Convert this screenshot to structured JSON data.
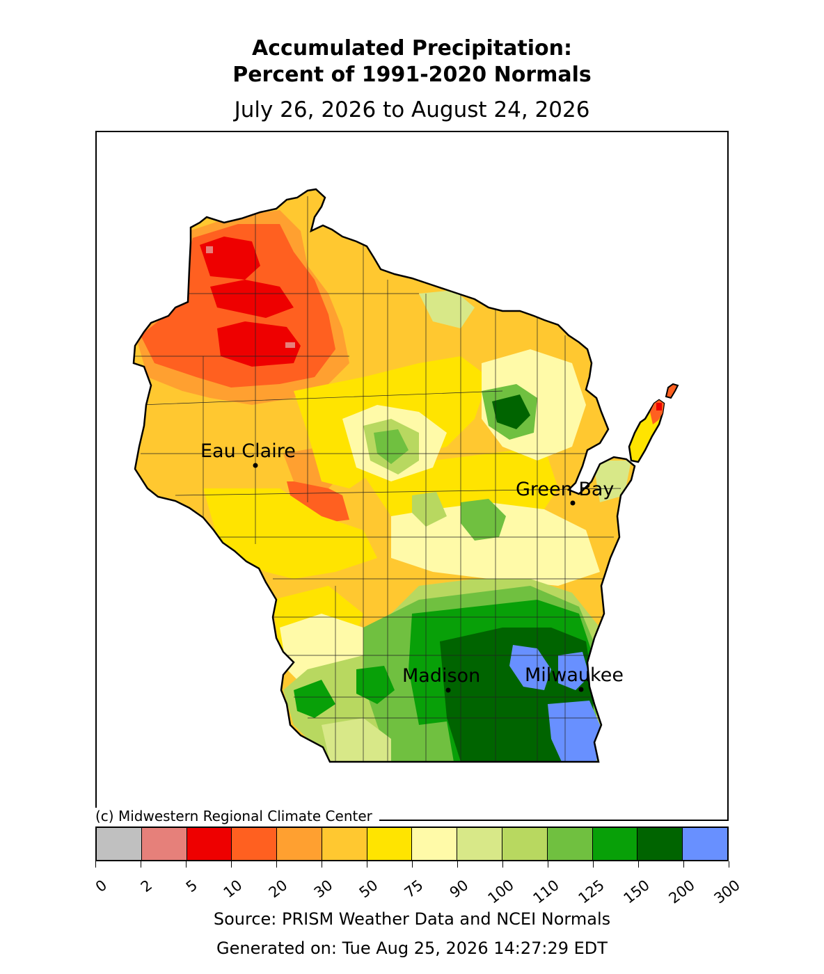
{
  "title_line1": "Accumulated Precipitation:",
  "title_line2": "Percent of 1991-2020 Normals",
  "date_range": "July 26, 2026 to August 24, 2026",
  "copyright": "(c) Midwestern Regional Climate Center",
  "source": "Source: PRISM Weather Data and NCEI Normals",
  "generated": "Generated on: Tue Aug 25, 2026 14:27:29 EDT",
  "map": {
    "region": "Wisconsin",
    "cities": [
      {
        "name": "Eau Claire"
      },
      {
        "name": "Green Bay"
      },
      {
        "name": "Madison"
      },
      {
        "name": "Milwaukee"
      }
    ]
  },
  "legend": {
    "ticks": [
      "0",
      "2",
      "5",
      "10",
      "20",
      "30",
      "50",
      "75",
      "90",
      "100",
      "110",
      "125",
      "150",
      "200",
      "300"
    ],
    "colors": [
      "#c0c0c0",
      "#e6807a",
      "#ee0000",
      "#ff6020",
      "#ffa030",
      "#ffc830",
      "#ffe400",
      "#fffaa8",
      "#d8e888",
      "#b8d860",
      "#70c040",
      "#08a008",
      "#006400",
      "#6890ff"
    ]
  }
}
